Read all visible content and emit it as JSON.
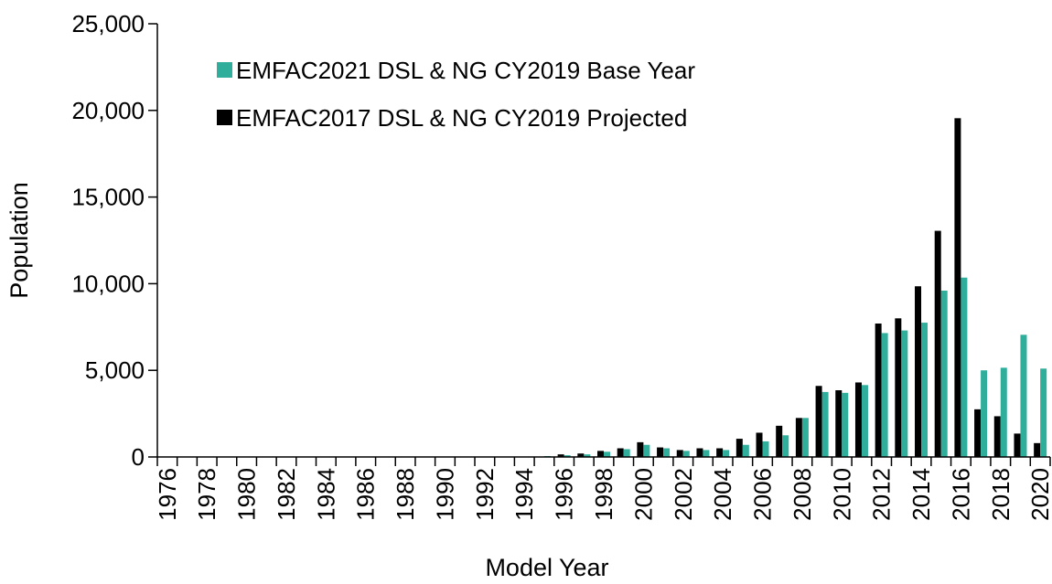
{
  "chart_data": {
    "type": "bar",
    "title": "",
    "xlabel": "Model Year",
    "ylabel": "Population",
    "ylim": [
      0,
      25000
    ],
    "yticks": [
      0,
      5000,
      10000,
      15000,
      20000,
      25000
    ],
    "ytick_labels": [
      "0",
      "5,000",
      "10,000",
      "15,000",
      "20,000",
      "25,000"
    ],
    "grid": false,
    "legend_position": "top-left",
    "categories": [
      "1976",
      "1977",
      "1978",
      "1979",
      "1980",
      "1981",
      "1982",
      "1983",
      "1984",
      "1985",
      "1986",
      "1987",
      "1988",
      "1989",
      "1990",
      "1991",
      "1992",
      "1993",
      "1994",
      "1995",
      "1996",
      "1997",
      "1998",
      "1999",
      "2000",
      "2001",
      "2002",
      "2003",
      "2004",
      "2005",
      "2006",
      "2007",
      "2008",
      "2009",
      "2010",
      "2011",
      "2012",
      "2013",
      "2014",
      "2015",
      "2016",
      "2017",
      "2018",
      "2019",
      "2020"
    ],
    "xtick_labels": [
      "1976",
      "1978",
      "1980",
      "1982",
      "1984",
      "1986",
      "1988",
      "1990",
      "1992",
      "1994",
      "1996",
      "1998",
      "2000",
      "2002",
      "2004",
      "2006",
      "2008",
      "2010",
      "2012",
      "2014",
      "2016",
      "2018",
      "2020"
    ],
    "series": [
      {
        "name": "EMFAC2021 DSL & NG CY2019 Base Year",
        "color": "#2fae9c",
        "values": [
          0,
          0,
          0,
          0,
          0,
          0,
          0,
          0,
          0,
          0,
          0,
          0,
          0,
          0,
          0,
          0,
          0,
          0,
          0,
          50,
          100,
          150,
          300,
          450,
          700,
          500,
          350,
          400,
          400,
          700,
          900,
          1250,
          2250,
          3750,
          3700,
          4150,
          7150,
          7300,
          7750,
          9600,
          10350,
          5000,
          5150,
          7050,
          5100
        ]
      },
      {
        "name": "EMFAC2017 DSL & NG CY2019 Projected",
        "color": "#000000",
        "values": [
          0,
          0,
          0,
          0,
          0,
          0,
          0,
          0,
          0,
          0,
          0,
          0,
          0,
          0,
          0,
          0,
          0,
          0,
          0,
          0,
          150,
          200,
          350,
          500,
          850,
          550,
          400,
          500,
          500,
          1050,
          1400,
          1800,
          2250,
          4100,
          3850,
          4300,
          7700,
          8000,
          9850,
          13050,
          19550,
          2750,
          2350,
          1350,
          800
        ]
      }
    ]
  }
}
